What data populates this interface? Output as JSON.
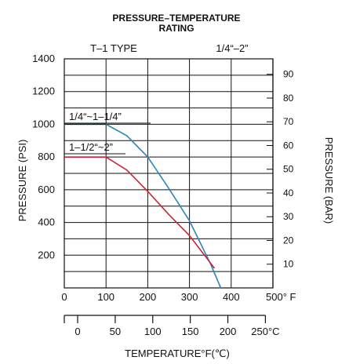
{
  "chart_data": {
    "type": "line",
    "title_line1": "PRESSURE–TEMPERATURE",
    "title_line2": "RATING",
    "subtitle_left": "T–1 TYPE",
    "subtitle_right": "1/4“–2”",
    "xlabel": "TEMPERATURE°F(℃)",
    "ylabel_left": "PRESSURE (PSI)",
    "ylabel_right": "PRESSURE (BAR)",
    "xlim": [
      0,
      500
    ],
    "ylim": [
      0,
      1400
    ],
    "x_ticks": [
      0,
      100,
      200,
      300,
      400,
      500
    ],
    "x_tick_labels": [
      "0",
      "100",
      "200",
      "300",
      "400",
      "500° F"
    ],
    "y_ticks": [
      200,
      400,
      600,
      800,
      1000,
      1200,
      1400
    ],
    "y_tick_labels": [
      "200",
      "400",
      "600",
      "800",
      "1000",
      "1200",
      "1400"
    ],
    "celsius_ticks": [
      -17.8,
      0,
      50,
      100,
      150,
      200,
      250
    ],
    "celsius_tick_labels": [
      "",
      "0",
      "50",
      "100",
      "150",
      "200",
      "250°C"
    ],
    "bar_ticks": [
      10,
      20,
      30,
      40,
      50,
      60,
      70,
      80,
      90
    ],
    "bar_tick_labels": [
      "10",
      "20",
      "30",
      "40",
      "50",
      "60",
      "70",
      "80",
      "90"
    ],
    "grid": true,
    "series": [
      {
        "name": "1/4“~1–1/4”",
        "color": "#2e86b5",
        "x": [
          0,
          100,
          150,
          200,
          250,
          300,
          350,
          375
        ],
        "y": [
          1000,
          1000,
          930,
          800,
          610,
          410,
          150,
          0
        ]
      },
      {
        "name": "1–1/2“~2”",
        "color": "#c4263a",
        "x": [
          0,
          100,
          150,
          200,
          250,
          300,
          360
        ],
        "y": [
          800,
          800,
          720,
          590,
          450,
          320,
          120
        ]
      }
    ]
  }
}
